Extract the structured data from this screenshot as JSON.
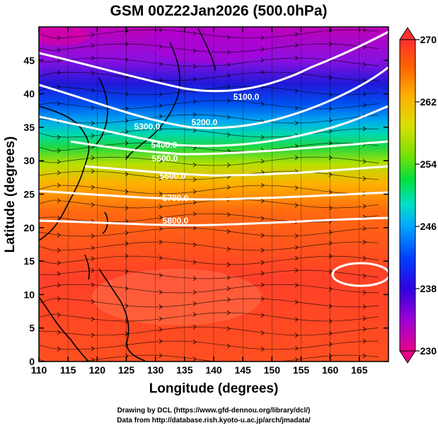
{
  "title": "GSM 00Z22Jan2026 (500.0hPa)",
  "xlabel": "Longitude (degrees)",
  "ylabel": "Latitude  (degrees)",
  "credit_line1": "Drawing by DCL (https://www.gfd-dennou.org/library/dcl/)",
  "credit_line2": "Data from http://database.rish.kyoto-u.ac.jp/arch/jmadata/",
  "map": {
    "xlim": [
      110,
      170
    ],
    "ylim": [
      0,
      50
    ],
    "x_ticks": [
      "110",
      "115",
      "120",
      "125",
      "130",
      "135",
      "140",
      "145",
      "150",
      "155",
      "160",
      "165"
    ],
    "y_ticks": [
      "0",
      "5",
      "10",
      "15",
      "20",
      "25",
      "30",
      "35",
      "40",
      "45"
    ]
  },
  "colorbar": {
    "ticks": [
      "230",
      "238",
      "246",
      "254",
      "262",
      "270"
    ],
    "range": [
      230,
      270
    ],
    "colors": [
      "#e8008a",
      "#9d00d8",
      "#3000e0",
      "#0040ff",
      "#00a8ff",
      "#00e0c8",
      "#00e040",
      "#7ae000",
      "#d8e000",
      "#ffb000",
      "#ff6400",
      "#ff3030"
    ]
  },
  "contours": [
    {
      "label": "5100.0"
    },
    {
      "label": "5200.0"
    },
    {
      "label": "5300.0"
    },
    {
      "label": "5400.0"
    },
    {
      "label": "5500.0"
    },
    {
      "label": "5600.0"
    },
    {
      "label": "5700.0"
    },
    {
      "label": "5800.0"
    }
  ]
}
